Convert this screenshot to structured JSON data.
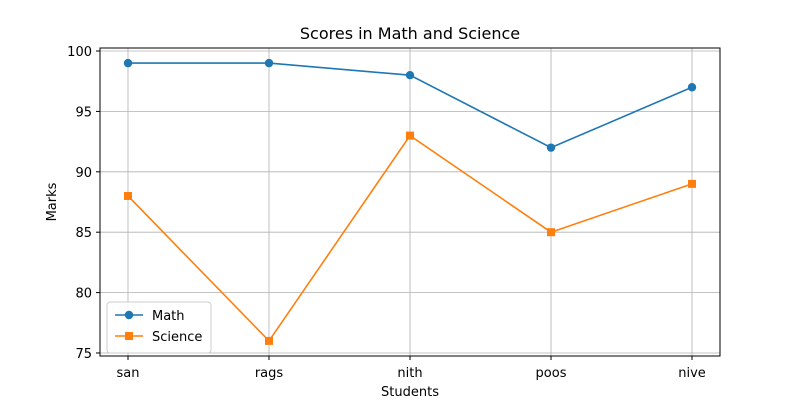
{
  "chart_data": {
    "type": "line",
    "title": "Scores in Math and Science",
    "xlabel": "Students",
    "ylabel": "Marks",
    "categories": [
      "san",
      "rags",
      "nith",
      "poos",
      "nive"
    ],
    "ylim": [
      74.75,
      100.25
    ],
    "yticks": [
      75,
      80,
      85,
      90,
      95,
      100
    ],
    "grid": true,
    "legend_position": "lower-left",
    "series": [
      {
        "name": "Math",
        "values": [
          99,
          99,
          98,
          92,
          97
        ],
        "color": "#1f77b4",
        "marker": "circle"
      },
      {
        "name": "Science",
        "values": [
          88,
          76,
          93,
          85,
          89
        ],
        "color": "#ff7f0e",
        "marker": "square"
      }
    ]
  }
}
